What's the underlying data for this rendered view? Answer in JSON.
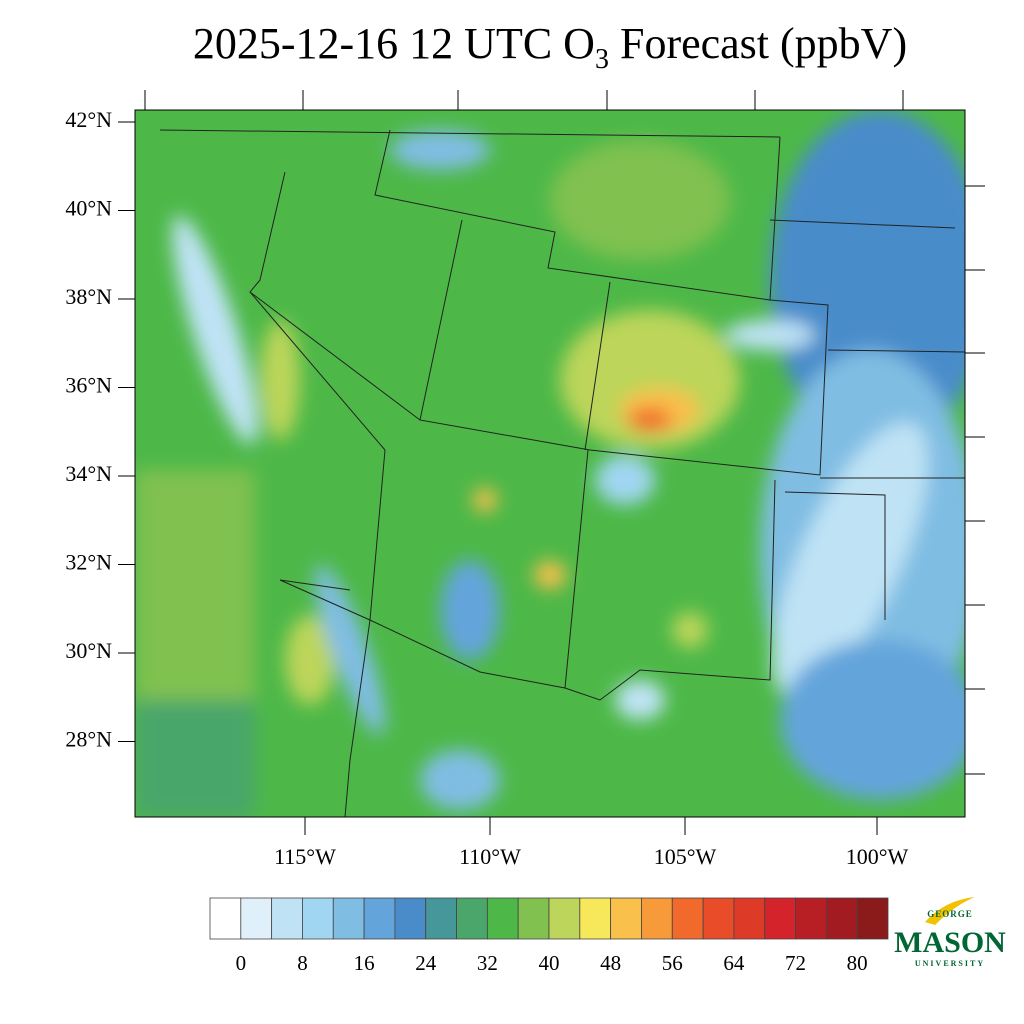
{
  "title": {
    "main": "2025-12-16 12 UTC O",
    "subscript": "3",
    "rest": " Forecast (ppbV)"
  },
  "latitude_labels": [
    "42°N",
    "40°N",
    "38°N",
    "36°N",
    "34°N",
    "32°N",
    "30°N",
    "28°N"
  ],
  "longitude_labels": [
    "115°W",
    "110°W",
    "105°W",
    "100°W"
  ],
  "colorbar": {
    "range": [
      -4,
      84
    ],
    "ticks": [
      0,
      8,
      16,
      24,
      32,
      40,
      48,
      56,
      64,
      72,
      80
    ],
    "colors": [
      "#ffffff",
      "#dff0fa",
      "#bfe3f5",
      "#a0d6f2",
      "#80bde3",
      "#63a4db",
      "#4a8cca",
      "#45979a",
      "#4aa66a",
      "#4db848",
      "#80c150",
      "#bcd55a",
      "#f6e85a",
      "#f9c04c",
      "#f69a3a",
      "#f26a2b",
      "#e94c28",
      "#dd3a28",
      "#d4232a",
      "#b81f25",
      "#a11b20",
      "#8b1a1a"
    ]
  },
  "logo": {
    "top": "GEORGE",
    "name": "MASON",
    "bottom": "UNIVERSITY"
  }
}
